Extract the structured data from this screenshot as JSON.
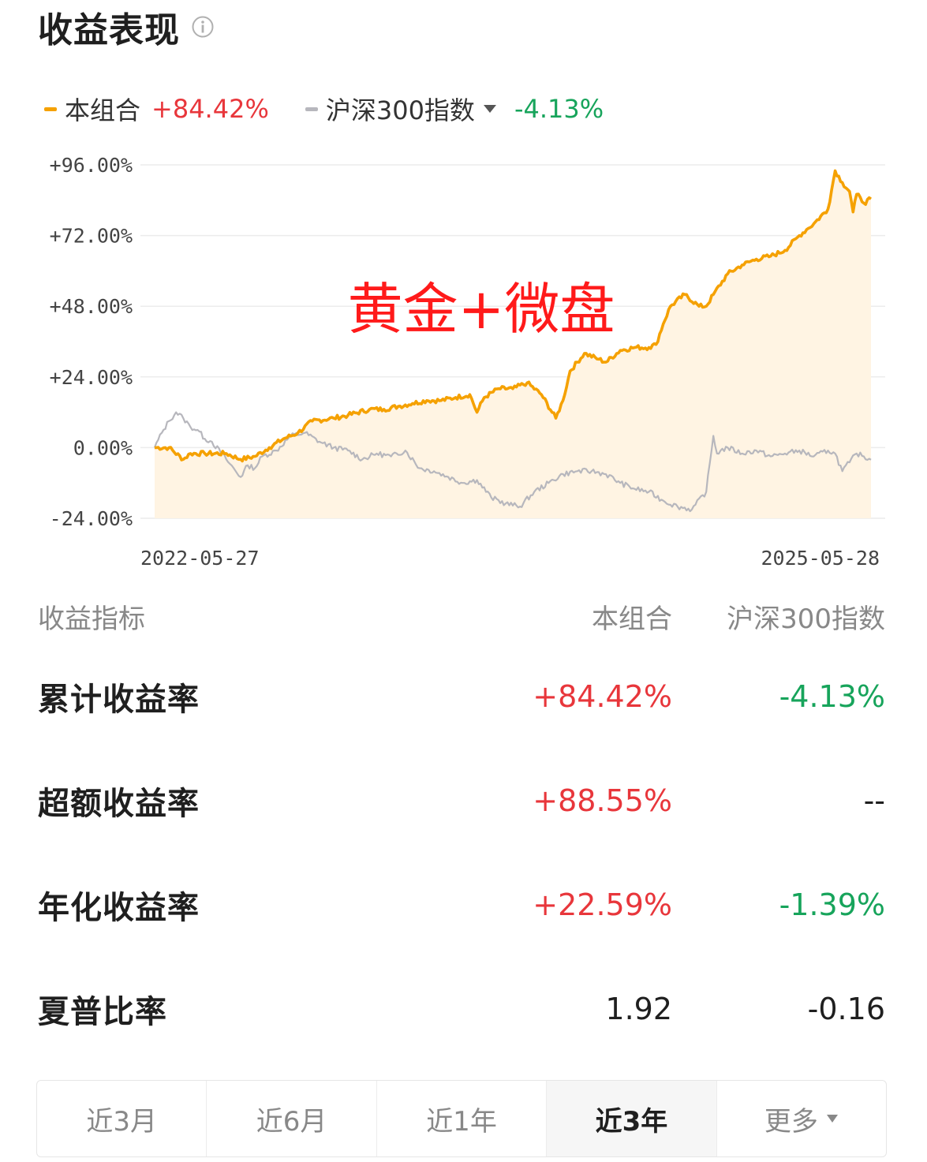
{
  "header": {
    "title": "收益表现",
    "info_icon": "info-icon"
  },
  "legend": {
    "portfolio": {
      "name": "本组合",
      "value": "+84.42%",
      "color": "#f5a100"
    },
    "benchmark": {
      "name": "沪深300指数",
      "value": "-4.13%",
      "color": "#b7b7bd",
      "dropdown_icon": "caret-down-icon"
    }
  },
  "watermark": "黄金+微盘",
  "chart_data": {
    "type": "line",
    "x_start_label": "2022-05-27",
    "x_end_label": "2025-05-28",
    "y_ticks": [
      "+96.00%",
      "+72.00%",
      "+48.00%",
      "+24.00%",
      "0.00%",
      "-24.00%"
    ],
    "ylim": [
      -24,
      96
    ],
    "x_range": [
      0,
      1
    ],
    "series": [
      {
        "name": "本组合",
        "color": "#f5a100",
        "x": [
          0,
          0.02,
          0.04,
          0.05,
          0.07,
          0.1,
          0.12,
          0.14,
          0.16,
          0.18,
          0.2,
          0.22,
          0.25,
          0.27,
          0.3,
          0.32,
          0.34,
          0.36,
          0.38,
          0.4,
          0.42,
          0.44,
          0.45,
          0.46,
          0.48,
          0.5,
          0.52,
          0.54,
          0.56,
          0.57,
          0.58,
          0.6,
          0.62,
          0.63,
          0.65,
          0.67,
          0.69,
          0.7,
          0.71,
          0.72,
          0.74,
          0.76,
          0.77,
          0.78,
          0.8,
          0.82,
          0.84,
          0.86,
          0.88,
          0.9,
          0.91,
          0.92,
          0.94,
          0.95,
          0.96,
          0.97,
          0.975,
          0.98,
          0.985,
          0.99,
          1.0
        ],
        "values": [
          0,
          0,
          -4,
          -2,
          -2,
          -2,
          -4,
          -3,
          0,
          3,
          5,
          9,
          10,
          11,
          13,
          13,
          14,
          15,
          16,
          16,
          17,
          18,
          12,
          17,
          20,
          20,
          22,
          18,
          10,
          16,
          26,
          32,
          30,
          29,
          33,
          34,
          34,
          35,
          42,
          48,
          52,
          48,
          48,
          52,
          59,
          62,
          64,
          65,
          67,
          72,
          74,
          76,
          81,
          94,
          90,
          87,
          80,
          86,
          85,
          83,
          84.42
        ]
      },
      {
        "name": "沪深300指数",
        "color": "#b7b7bd",
        "x": [
          0,
          0.01,
          0.02,
          0.03,
          0.04,
          0.05,
          0.06,
          0.07,
          0.08,
          0.1,
          0.12,
          0.13,
          0.14,
          0.15,
          0.17,
          0.19,
          0.21,
          0.23,
          0.25,
          0.27,
          0.29,
          0.31,
          0.33,
          0.35,
          0.37,
          0.39,
          0.41,
          0.43,
          0.45,
          0.47,
          0.49,
          0.51,
          0.53,
          0.55,
          0.57,
          0.59,
          0.61,
          0.63,
          0.65,
          0.67,
          0.69,
          0.71,
          0.73,
          0.75,
          0.77,
          0.78,
          0.785,
          0.79,
          0.8,
          0.82,
          0.84,
          0.86,
          0.88,
          0.9,
          0.92,
          0.94,
          0.95,
          0.96,
          0.97,
          0.98,
          0.99,
          1.0
        ],
        "values": [
          0,
          5,
          9,
          12,
          10,
          7,
          6,
          3,
          2,
          -4,
          -10,
          -6,
          -7,
          -3,
          -1,
          4,
          5,
          2,
          0,
          -1,
          -4,
          -2,
          -3,
          -1,
          -7,
          -8,
          -10,
          -12,
          -11,
          -17,
          -19,
          -20,
          -15,
          -12,
          -9,
          -8,
          -8,
          -9,
          -12,
          -14,
          -15,
          -18,
          -20,
          -21,
          -15,
          4,
          -2,
          -1,
          0,
          -2,
          -1,
          -3,
          -2,
          -1,
          -3,
          -1,
          -2,
          -8,
          -5,
          -2,
          -3,
          -4.13
        ]
      }
    ]
  },
  "metrics": {
    "header": {
      "label": "收益指标",
      "col1": "本组合",
      "col2": "沪深300指数"
    },
    "rows": [
      {
        "label": "累计收益率",
        "portfolio": "+84.42%",
        "benchmark": "-4.13%",
        "p_tone": "pos",
        "b_tone": "neg"
      },
      {
        "label": "超额收益率",
        "portfolio": "+88.55%",
        "benchmark": "--",
        "p_tone": "pos",
        "b_tone": "neutral"
      },
      {
        "label": "年化收益率",
        "portfolio": "+22.59%",
        "benchmark": "-1.39%",
        "p_tone": "pos",
        "b_tone": "neg"
      },
      {
        "label": "夏普比率",
        "portfolio": "1.92",
        "benchmark": "-0.16",
        "p_tone": "neutral",
        "b_tone": "neutral"
      }
    ]
  },
  "tabs": [
    {
      "label": "近3月",
      "active": false
    },
    {
      "label": "近6月",
      "active": false
    },
    {
      "label": "近1年",
      "active": false
    },
    {
      "label": "近3年",
      "active": true
    },
    {
      "label": "更多",
      "active": false,
      "icon": "caret-down-icon"
    }
  ],
  "colors": {
    "positive": "#e8363b",
    "negative": "#17a45b",
    "area_fill": "#fff4e3"
  }
}
